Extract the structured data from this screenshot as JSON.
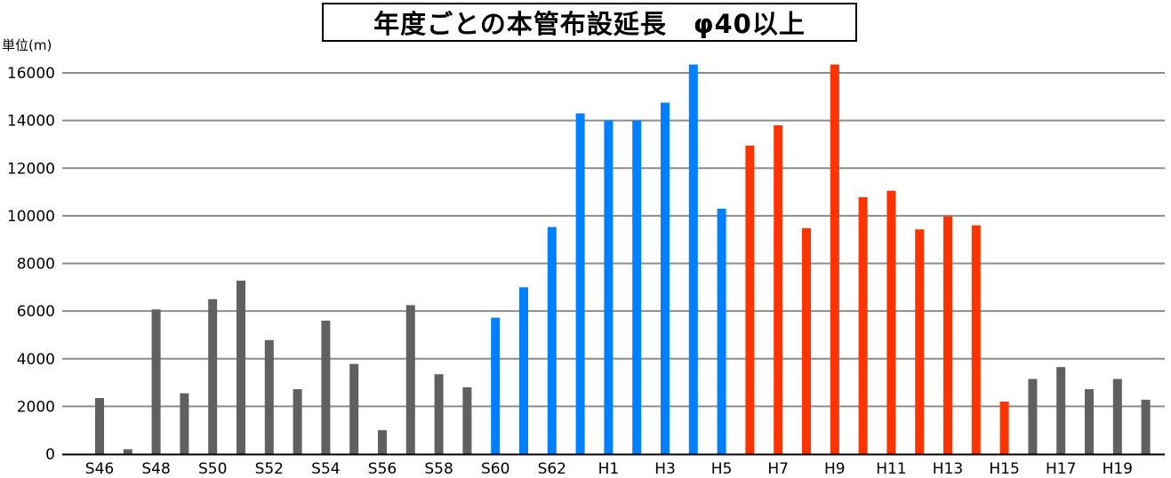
{
  "chart_data": {
    "type": "bar",
    "title": "年度ごとの本管布設延長　φ40以上",
    "ylabel": "単位(m)",
    "xlabel": "",
    "ylim": [
      0,
      16000
    ],
    "yticks": [
      0,
      2000,
      4000,
      6000,
      8000,
      10000,
      12000,
      14000,
      16000
    ],
    "ytick_labels": [
      "0",
      "2000",
      "4000",
      "6000",
      "8000",
      "10000",
      "12000",
      "14000",
      "16000"
    ],
    "grid": true,
    "categories": [
      "S46",
      "S47",
      "S48",
      "S49",
      "S50",
      "S51",
      "S52",
      "S53",
      "S54",
      "S55",
      "S56",
      "S57",
      "S58",
      "S59",
      "S60",
      "S61",
      "S62",
      "S63",
      "H1",
      "H2",
      "H3",
      "H4",
      "H5",
      "H6",
      "H7",
      "H8",
      "H9",
      "H10",
      "H11",
      "H12",
      "H13",
      "H14",
      "H15",
      "H16",
      "H17",
      "H18",
      "H19",
      "H20"
    ],
    "xtick_labels": [
      "S46",
      "",
      "S48",
      "",
      "S50",
      "",
      "S52",
      "",
      "S54",
      "",
      "S56",
      "",
      "S58",
      "",
      "S60",
      "",
      "S62",
      "",
      "H1",
      "",
      "H3",
      "",
      "H5",
      "",
      "H7",
      "",
      "H9",
      "",
      "H11",
      "",
      "H13",
      "",
      "H15",
      "",
      "H17",
      "",
      "H19",
      ""
    ],
    "values": [
      2350,
      200,
      6070,
      2550,
      6500,
      7280,
      4780,
      2720,
      5600,
      3780,
      1000,
      6250,
      3350,
      2800,
      5720,
      7000,
      9530,
      14300,
      14000,
      14000,
      14750,
      16350,
      10300,
      12950,
      13800,
      9480,
      16350,
      10780,
      11050,
      9430,
      9980,
      9600,
      2200,
      3150,
      3650,
      2720,
      3150,
      2280
    ],
    "bar_colors": [
      "#606060",
      "#606060",
      "#606060",
      "#606060",
      "#606060",
      "#606060",
      "#606060",
      "#606060",
      "#606060",
      "#606060",
      "#606060",
      "#606060",
      "#606060",
      "#606060",
      "#0080ff",
      "#0080ff",
      "#0080ff",
      "#0080ff",
      "#0080ff",
      "#0080ff",
      "#0080ff",
      "#0080ff",
      "#0080ff",
      "#ff3300",
      "#ff3300",
      "#ff3300",
      "#ff3300",
      "#ff3300",
      "#ff3300",
      "#ff3300",
      "#ff3300",
      "#ff3300",
      "#ff3300",
      "#606060",
      "#606060",
      "#606060",
      "#606060",
      "#606060"
    ],
    "grid_color": "#8c8c8c",
    "axis_color": "#000000"
  }
}
